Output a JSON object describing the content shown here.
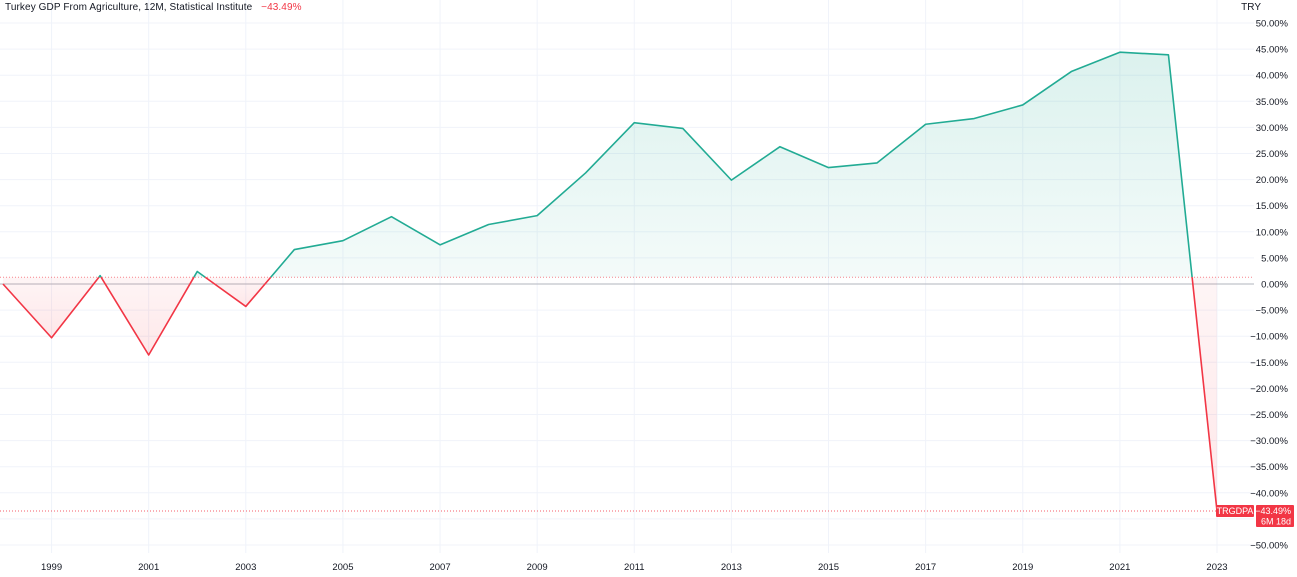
{
  "header": {
    "title": "Turkey GDP From Agriculture, 12M, Statistical Institute",
    "change": "−43.49%",
    "currency": "TRY"
  },
  "badge": {
    "symbol": "TRGDPA",
    "value": "−43.49%",
    "countdown": "6M 18d"
  },
  "colors": {
    "positive": "#22ab94",
    "negative": "#f23645",
    "grid": "#f0f3fa",
    "zero_line": "#b2b5be",
    "text": "#131722"
  },
  "chart_data": {
    "type": "area",
    "xlabel": "",
    "ylabel": "",
    "x": [
      1998,
      1999,
      2000,
      2001,
      2002,
      2003,
      2004,
      2005,
      2006,
      2007,
      2008,
      2009,
      2010,
      2011,
      2012,
      2013,
      2014,
      2015,
      2016,
      2017,
      2018,
      2019,
      2020,
      2021,
      2022,
      2023
    ],
    "values": [
      0.0,
      -10.3,
      1.6,
      -13.6,
      2.4,
      -4.3,
      6.6,
      8.3,
      12.9,
      7.5,
      11.4,
      13.1,
      21.3,
      30.9,
      29.8,
      19.9,
      26.3,
      22.3,
      23.2,
      30.6,
      31.7,
      34.3,
      40.7,
      44.4,
      43.9,
      -43.49
    ],
    "x_ticks": [
      "1999",
      "2001",
      "2003",
      "2005",
      "2007",
      "2009",
      "2011",
      "2013",
      "2015",
      "2017",
      "2019",
      "2021",
      "2023"
    ],
    "y_ticks": [
      "50.00%",
      "45.00%",
      "40.00%",
      "35.00%",
      "30.00%",
      "25.00%",
      "20.00%",
      "15.00%",
      "10.00%",
      "5.00%",
      "0.00%",
      "−5.00%",
      "−10.00%",
      "−15.00%",
      "−20.00%",
      "−25.00%",
      "−30.00%",
      "−35.00%",
      "−40.00%",
      "−50.00%"
    ],
    "ylim": [
      -50,
      50
    ],
    "baseline": 1.3,
    "grid": true,
    "last_value": -43.49
  }
}
